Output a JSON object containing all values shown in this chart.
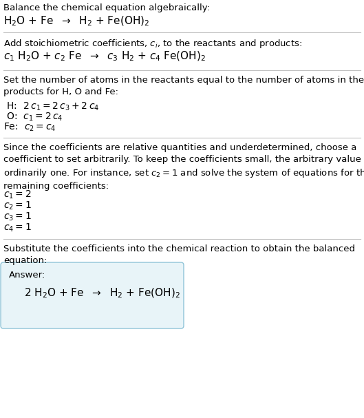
{
  "colors": {
    "background": "#ffffff",
    "text": "#000000",
    "divider": "#c0c0c0",
    "answer_box_bg": "#e8f4f8",
    "answer_box_border": "#90c4d8"
  },
  "sections": {
    "s1_title": "Balance the chemical equation algebraically:",
    "s1_eq": "H$_2$O + Fe  $\\rightarrow$  H$_2$ + Fe(OH)$_2$",
    "s2_title": "Add stoichiometric coefficients, $c_i$, to the reactants and products:",
    "s2_eq": "$c_1$ H$_2$O + $c_2$ Fe  $\\rightarrow$  $c_3$ H$_2$ + $c_4$ Fe(OH)$_2$",
    "s3_title": "Set the number of atoms in the reactants equal to the number of atoms in the\nproducts for H, O and Fe:",
    "s3_h": " H:  $2\\,c_1 = 2\\,c_3 + 2\\,c_4$",
    "s3_o": " O:  $c_1 = 2\\,c_4$",
    "s3_fe": "Fe:  $c_2 = c_4$",
    "s4_title": "Since the coefficients are relative quantities and underdetermined, choose a\ncoefficient to set arbitrarily. To keep the coefficients small, the arbitrary value is\nordinarily one. For instance, set $c_2 = 1$ and solve the system of equations for the\nremaining coefficients:",
    "s4_c1": "$c_1 = 2$",
    "s4_c2": "$c_2 = 1$",
    "s4_c3": "$c_3 = 1$",
    "s4_c4": "$c_4 = 1$",
    "s5_title": "Substitute the coefficients into the chemical reaction to obtain the balanced\nequation:",
    "s5_answer_label": "Answer:",
    "s5_answer_eq": "2 H$_2$O + Fe  $\\rightarrow$  H$_2$ + Fe(OH)$_2$"
  },
  "font_size_text": 9.5,
  "font_size_chem": 11,
  "font_size_eq": 10
}
